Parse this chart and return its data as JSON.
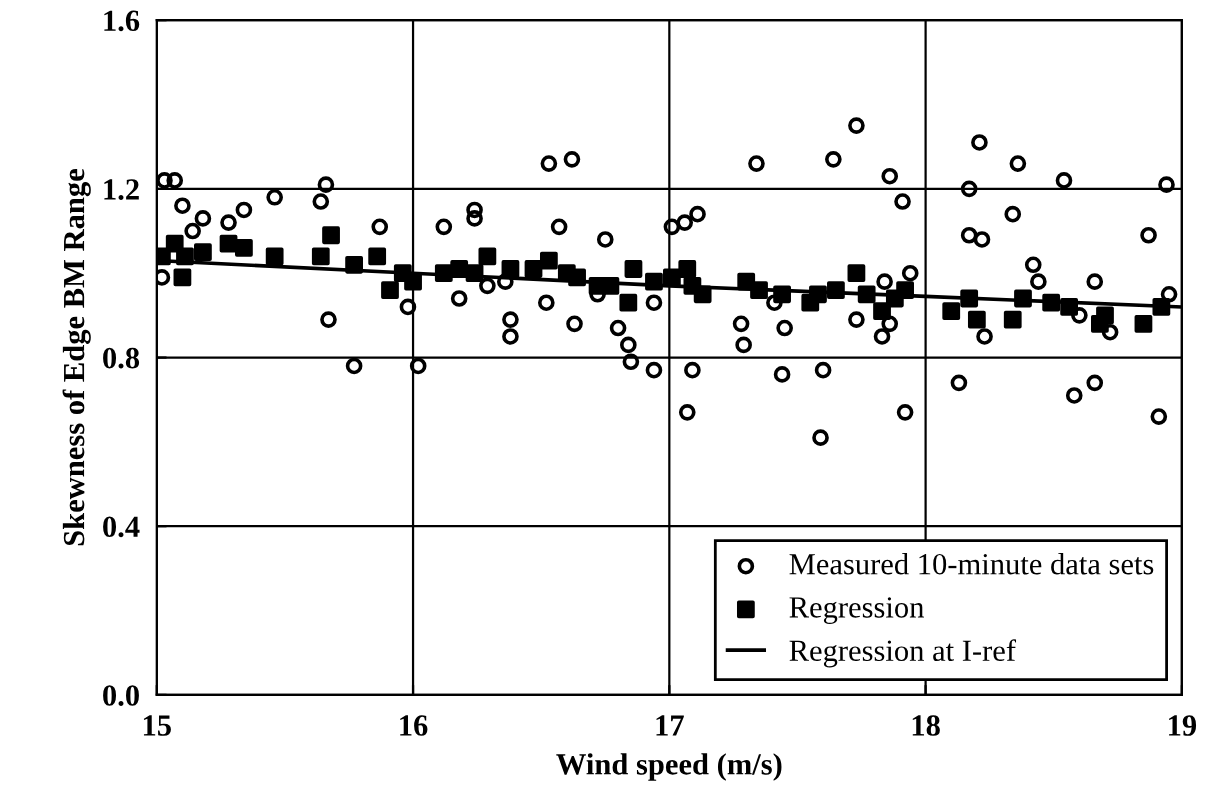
{
  "chart_data": {
    "type": "scatter",
    "xlabel": "Wind speed (m/s)",
    "ylabel": "Skewness of Edge BM Range",
    "xlim": [
      15,
      19
    ],
    "ylim": [
      0,
      1.6
    ],
    "xticks": [
      15,
      16,
      17,
      18,
      19
    ],
    "yticks": [
      {
        "value": 0,
        "label": "0.0"
      },
      0.4,
      0.8,
      1.2,
      1.6
    ],
    "grid": true,
    "legend": "bottom right",
    "series": [
      {
        "name": "Measured 10-minute data sets",
        "marker": "circle",
        "color": "#000000",
        "x": [
          15.03,
          15.07,
          15.1,
          15.14,
          15.18,
          15.02,
          15.28,
          15.34,
          15.46,
          15.64,
          15.66,
          15.67,
          15.77,
          15.87,
          15.98,
          16.02,
          16.12,
          16.24,
          16.24,
          16.18,
          16.29,
          16.36,
          16.38,
          16.38,
          16.53,
          16.62,
          16.57,
          16.52,
          16.63,
          16.75,
          16.72,
          16.8,
          16.84,
          16.85,
          16.94,
          16.94,
          17.01,
          17.06,
          17.11,
          17.09,
          17.07,
          17.34,
          17.28,
          17.29,
          17.41,
          17.45,
          17.44,
          17.6,
          17.59,
          17.64,
          17.73,
          17.73,
          17.86,
          17.91,
          17.84,
          17.83,
          17.86,
          17.94,
          17.92,
          18.13,
          18.17,
          18.21,
          18.17,
          18.22,
          18.23,
          18.36,
          18.34,
          18.42,
          18.44,
          18.54,
          18.66,
          18.6,
          18.58,
          18.66,
          18.72,
          18.87,
          18.91,
          18.94,
          18.95
        ],
        "values": [
          1.22,
          1.22,
          1.16,
          1.1,
          1.13,
          0.99,
          1.12,
          1.15,
          1.18,
          1.17,
          1.21,
          0.89,
          0.78,
          1.11,
          0.92,
          0.78,
          1.11,
          1.15,
          1.13,
          0.94,
          0.97,
          0.98,
          0.89,
          0.85,
          1.26,
          1.27,
          1.11,
          0.93,
          0.88,
          1.08,
          0.95,
          0.87,
          0.83,
          0.79,
          0.77,
          0.93,
          1.11,
          1.12,
          1.14,
          0.77,
          0.67,
          1.26,
          0.88,
          0.83,
          0.93,
          0.87,
          0.76,
          0.77,
          0.61,
          1.27,
          1.35,
          0.89,
          1.23,
          1.17,
          0.98,
          0.85,
          0.88,
          1.0,
          0.67,
          0.74,
          1.2,
          1.31,
          1.09,
          1.08,
          0.85,
          1.26,
          1.14,
          1.02,
          0.98,
          1.22,
          0.98,
          0.9,
          0.71,
          0.74,
          0.86,
          1.09,
          0.66,
          1.21,
          0.95
        ]
      },
      {
        "name": "Regression",
        "marker": "square",
        "color": "#000000",
        "x": [
          15.02,
          15.07,
          15.1,
          15.11,
          15.18,
          15.28,
          15.34,
          15.46,
          15.64,
          15.68,
          15.77,
          15.86,
          15.91,
          15.96,
          16.0,
          16.12,
          16.18,
          16.24,
          16.29,
          16.38,
          16.47,
          16.53,
          16.6,
          16.64,
          16.72,
          16.77,
          16.84,
          16.86,
          16.94,
          17.01,
          17.07,
          17.09,
          17.13,
          17.3,
          17.35,
          17.44,
          17.55,
          17.58,
          17.65,
          17.73,
          17.77,
          17.83,
          17.88,
          17.92,
          18.1,
          18.17,
          18.2,
          18.34,
          18.38,
          18.49,
          18.56,
          18.68,
          18.7,
          18.85,
          18.92
        ],
        "values": [
          1.04,
          1.07,
          0.99,
          1.04,
          1.05,
          1.07,
          1.06,
          1.04,
          1.04,
          1.09,
          1.02,
          1.04,
          0.96,
          1.0,
          0.98,
          1.0,
          1.01,
          1.0,
          1.04,
          1.01,
          1.01,
          1.03,
          1.0,
          0.99,
          0.97,
          0.97,
          0.93,
          1.01,
          0.98,
          0.99,
          1.01,
          0.97,
          0.95,
          0.98,
          0.96,
          0.95,
          0.93,
          0.95,
          0.96,
          1.0,
          0.95,
          0.91,
          0.94,
          0.96,
          0.91,
          0.94,
          0.89,
          0.89,
          0.94,
          0.93,
          0.92,
          0.88,
          0.9,
          0.88,
          0.92
        ]
      },
      {
        "name": "Regression at I-ref",
        "type": "line",
        "marker": "none",
        "line_style": "solid",
        "color": "#000000",
        "x": [
          15,
          16,
          17,
          18,
          19
        ],
        "values": [
          1.03,
          1.0,
          0.97,
          0.945,
          0.92
        ]
      }
    ]
  }
}
